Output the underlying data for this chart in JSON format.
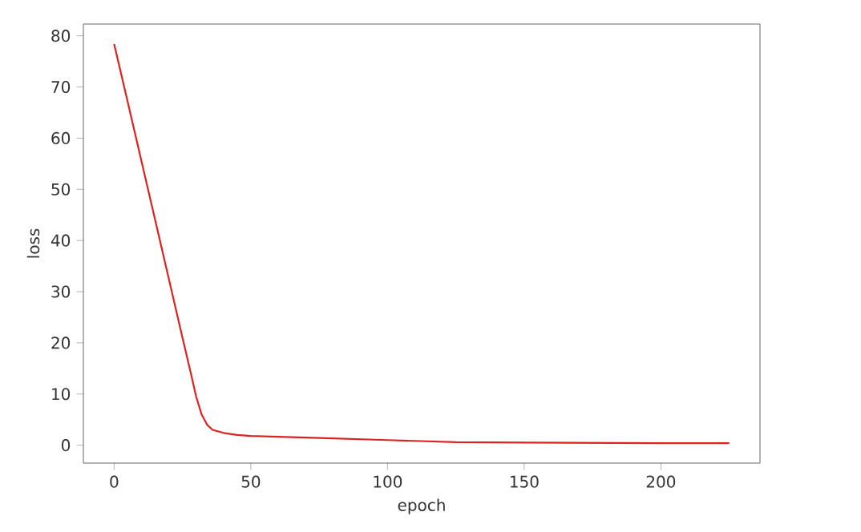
{
  "chart_data": {
    "type": "line",
    "xlabel": "epoch",
    "ylabel": "loss",
    "x": [
      0,
      5,
      10,
      15,
      20,
      25,
      28,
      30,
      32,
      34,
      36,
      40,
      45,
      50,
      75,
      100,
      125,
      150,
      200,
      225
    ],
    "series": [
      {
        "color": "#dd2222",
        "values": [
          78.4,
          67,
          55.5,
          44,
          32.5,
          21,
          14.2,
          9.5,
          6.0,
          4.0,
          3.0,
          2.4,
          2.0,
          1.8,
          1.4,
          1.0,
          0.6,
          0.5,
          0.4,
          0.4
        ]
      }
    ],
    "xlim": [
      -11.25,
      236.25
    ],
    "ylim": [
      -3.5,
      82.3
    ],
    "xticks": [
      0,
      50,
      100,
      150,
      200
    ],
    "yticks": [
      0,
      10,
      20,
      30,
      40,
      50,
      60,
      70,
      80
    ],
    "grid": false,
    "marker": "none",
    "line_style": "solid"
  }
}
